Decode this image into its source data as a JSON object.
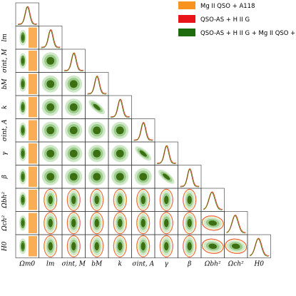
{
  "chart_data": {
    "type": "triangle-corner-plot",
    "parameters": [
      {
        "key": "Om0",
        "label": "Ωm0"
      },
      {
        "key": "lm",
        "label": "lm"
      },
      {
        "key": "sigM",
        "label": "σint, M"
      },
      {
        "key": "bM",
        "label": "bM"
      },
      {
        "key": "k",
        "label": "k"
      },
      {
        "key": "sigA",
        "label": "σint, A"
      },
      {
        "key": "gamma",
        "label": "γ"
      },
      {
        "key": "beta",
        "label": "β"
      },
      {
        "key": "Obh2",
        "label": "Ωbh²"
      },
      {
        "key": "Och2",
        "label": "Ωch²"
      },
      {
        "key": "H0",
        "label": "H0"
      }
    ],
    "legend": {
      "placement": "top-right",
      "entries": [
        {
          "label": "Mg II QSO + A118",
          "color": "#ff8c00"
        },
        {
          "label": "QSO-AS + H II G",
          "color": "#e8141a"
        },
        {
          "label": "QSO-AS + H II G + Mg II QSO + A118",
          "color": "#1d6b0c"
        }
      ]
    },
    "colors": {
      "mg": "#f7931e",
      "qso": "#d7191c",
      "combined_dark": "#3c6e12",
      "combined_mid": "#5fa040",
      "combined_light": "#cfe8c8"
    },
    "corner_label": "Om0",
    "correlations": [
      {
        "row": 6,
        "col": 5,
        "shape": "neg-diagonal"
      },
      {
        "row": 7,
        "col": 6,
        "shape": "neg-diagonal"
      },
      {
        "row": 4,
        "col": 3,
        "shape": "neg-diagonal"
      }
    ]
  }
}
